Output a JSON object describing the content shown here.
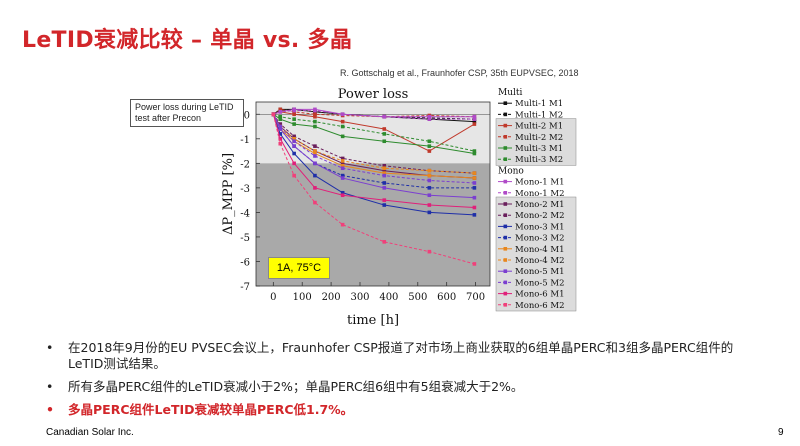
{
  "slide": {
    "title": "LeTID衰减比较 – 单晶 vs. 多晶",
    "citation": "R. Gottschalg et al., Fraunhofer CSP, 35th EUPVSEC, 2018",
    "note": "Power loss during LeTID test after Precon",
    "condition_label": "1A, 75°C",
    "bullets": [
      "在2018年9月份的EU PVSEC会议上，Fraunhofer CSP报道了对市场上商业获取的6组单晶PERC和3组多晶PERC组件的LeTID测试结果。",
      "所有多晶PERC组件的LeTID衰减小于2%；单晶PERC组6组中有5组衰减大于2%。",
      "多晶PERC组件LeTID衰减较单晶PERC低1.7%。"
    ],
    "bullet_symbol": "•",
    "footer_company": "Canadian Solar Inc.",
    "page_number": "9"
  },
  "chart_data": {
    "type": "line",
    "title": "Power loss",
    "xlabel": "time [h]",
    "ylabel": "ΔP_MPP [%]",
    "xlim": [
      -60,
      750
    ],
    "ylim": [
      -7,
      0.5
    ],
    "xticks": [
      "0",
      "100",
      "200",
      "300",
      "400",
      "500",
      "600",
      "700"
    ],
    "yticks": [
      "0",
      "-1",
      "-2",
      "-3",
      "-4",
      "-5",
      "-6",
      "-7"
    ],
    "x": [
      0,
      24,
      72,
      144,
      240,
      384,
      540,
      696
    ],
    "legend_groups": [
      "Multi",
      "Mono"
    ],
    "series": [
      {
        "name": "Multi-1 M1",
        "group": "Multi",
        "color": "#111111",
        "dash": false,
        "values": [
          0,
          0.2,
          0.2,
          0.1,
          0.0,
          -0.1,
          -0.2,
          -0.3
        ]
      },
      {
        "name": "Multi-1 M2",
        "group": "Multi",
        "color": "#111111",
        "dash": true,
        "values": [
          0,
          0.15,
          0.2,
          0.1,
          0.0,
          -0.1,
          -0.15,
          -0.2
        ]
      },
      {
        "name": "Multi-2 M1",
        "group": "Multi",
        "color": "#c0392b",
        "dash": false,
        "values": [
          0,
          0.1,
          0.0,
          -0.1,
          -0.3,
          -0.6,
          -1.5,
          -0.4
        ]
      },
      {
        "name": "Multi-2 M2",
        "group": "Multi",
        "color": "#c0392b",
        "dash": true,
        "values": [
          0,
          0.2,
          0.1,
          0.0,
          -0.05,
          -0.1,
          -0.05,
          -0.1
        ]
      },
      {
        "name": "Multi-3 M1",
        "group": "Multi",
        "color": "#2e8b2e",
        "dash": false,
        "values": [
          0,
          -0.2,
          -0.4,
          -0.5,
          -0.9,
          -1.1,
          -1.3,
          -1.6
        ]
      },
      {
        "name": "Multi-3 M2",
        "group": "Multi",
        "color": "#2e8b2e",
        "dash": true,
        "values": [
          0,
          -0.1,
          -0.2,
          -0.3,
          -0.5,
          -0.8,
          -1.1,
          -1.5
        ]
      },
      {
        "name": "Mono-1 M1",
        "group": "Mono",
        "color": "#b04ac8",
        "dash": false,
        "values": [
          0,
          0.1,
          0.2,
          0.2,
          0.0,
          -0.1,
          -0.1,
          -0.1
        ]
      },
      {
        "name": "Mono-1 M2",
        "group": "Mono",
        "color": "#b04ac8",
        "dash": true,
        "values": [
          0,
          0.1,
          0.15,
          0.15,
          0.0,
          -0.1,
          -0.2,
          -0.2
        ]
      },
      {
        "name": "Mono-2 M1",
        "group": "Mono",
        "color": "#6a1f5c",
        "dash": false,
        "values": [
          0,
          -0.5,
          -1.0,
          -1.5,
          -2.0,
          -2.3,
          -2.5,
          -2.6
        ]
      },
      {
        "name": "Mono-2 M2",
        "group": "Mono",
        "color": "#6a1f5c",
        "dash": true,
        "values": [
          0,
          -0.4,
          -0.9,
          -1.3,
          -1.8,
          -2.1,
          -2.3,
          -2.4
        ]
      },
      {
        "name": "Mono-3 M1",
        "group": "Mono",
        "color": "#1f2fa8",
        "dash": false,
        "values": [
          0,
          -0.8,
          -1.6,
          -2.5,
          -3.2,
          -3.7,
          -4.0,
          -4.1
        ]
      },
      {
        "name": "Mono-3 M2",
        "group": "Mono",
        "color": "#1f2fa8",
        "dash": true,
        "values": [
          0,
          -0.6,
          -1.3,
          -2.0,
          -2.5,
          -2.8,
          -3.0,
          -3.0
        ]
      },
      {
        "name": "Mono-4 M1",
        "group": "Mono",
        "color": "#e8871e",
        "dash": false,
        "values": [
          0,
          -0.6,
          -1.1,
          -1.6,
          -2.1,
          -2.4,
          -2.5,
          -2.6
        ]
      },
      {
        "name": "Mono-4 M2",
        "group": "Mono",
        "color": "#e8871e",
        "dash": true,
        "values": [
          0,
          -0.5,
          -1.0,
          -1.5,
          -1.9,
          -2.2,
          -2.3,
          -2.4
        ]
      },
      {
        "name": "Mono-5 M1",
        "group": "Mono",
        "color": "#7b3fd0",
        "dash": false,
        "values": [
          0,
          -0.6,
          -1.3,
          -2.0,
          -2.6,
          -3.0,
          -3.3,
          -3.4
        ]
      },
      {
        "name": "Mono-5 M2",
        "group": "Mono",
        "color": "#7b3fd0",
        "dash": true,
        "values": [
          0,
          -0.5,
          -1.1,
          -1.7,
          -2.2,
          -2.5,
          -2.7,
          -2.8
        ]
      },
      {
        "name": "Mono-6 M1",
        "group": "Mono",
        "color": "#e0207a",
        "dash": false,
        "values": [
          0,
          -1.0,
          -2.0,
          -3.0,
          -3.3,
          -3.5,
          -3.7,
          -3.8
        ]
      },
      {
        "name": "Mono-6 M2",
        "group": "Mono",
        "color": "#f0407a",
        "dash": true,
        "values": [
          0,
          -1.2,
          -2.5,
          -3.6,
          -4.5,
          -5.2,
          -5.6,
          -6.1
        ]
      }
    ],
    "shaded_bands": [
      [
        -2,
        0.5
      ]
    ],
    "grid": false
  }
}
